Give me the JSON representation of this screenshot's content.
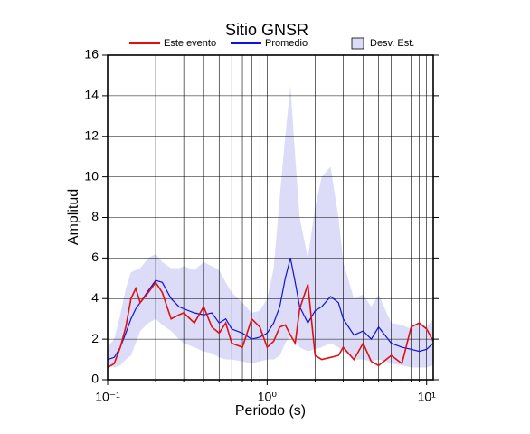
{
  "chart_data": {
    "type": "line",
    "title": "Sitio GNSR",
    "xlabel": "Periodo (s)",
    "ylabel": "Amplitud",
    "xlog": true,
    "grid": true,
    "xlim": [
      0.1,
      11
    ],
    "ylim": [
      0,
      16
    ],
    "xticks": [
      {
        "value": 0.1,
        "label": "10⁻¹"
      },
      {
        "value": 1,
        "label": "10⁰"
      },
      {
        "value": 10,
        "label": "10¹"
      }
    ],
    "xminorticks": [
      0.2,
      0.3,
      0.4,
      0.5,
      0.6,
      0.7,
      0.8,
      0.9,
      2,
      3,
      4,
      5,
      6,
      7,
      8,
      9
    ],
    "yticks": [
      0,
      2,
      4,
      6,
      8,
      10,
      12,
      14,
      16
    ],
    "x": [
      0.1,
      0.11,
      0.12,
      0.13,
      0.14,
      0.15,
      0.16,
      0.18,
      0.2,
      0.22,
      0.25,
      0.28,
      0.3,
      0.35,
      0.4,
      0.45,
      0.5,
      0.55,
      0.6,
      0.7,
      0.8,
      0.9,
      1.0,
      1.1,
      1.2,
      1.3,
      1.4,
      1.5,
      1.6,
      1.8,
      2.0,
      2.2,
      2.5,
      2.8,
      3.0,
      3.5,
      4.0,
      4.5,
      5.0,
      6.0,
      7.0,
      8.0,
      9.0,
      10,
      11
    ],
    "series": [
      {
        "name": "Desv. Est.",
        "color": "#dcdcf8",
        "upper": [
          1.6,
          2.0,
          3.2,
          4.5,
          5.3,
          5.4,
          5.5,
          6.0,
          6.2,
          5.8,
          5.5,
          5.5,
          5.6,
          5.4,
          5.8,
          5.6,
          5.4,
          4.8,
          4.3,
          3.8,
          3.3,
          3.4,
          4.0,
          5.5,
          9.0,
          12.0,
          14.5,
          11.0,
          8.0,
          6.0,
          8.5,
          10.0,
          10.5,
          8.0,
          5.8,
          4.0,
          4.2,
          3.6,
          4.2,
          2.8,
          2.7,
          2.5,
          2.8,
          2.6,
          3.0
        ],
        "lower": [
          0.7,
          0.6,
          0.7,
          1.0,
          1.2,
          1.8,
          2.4,
          2.8,
          3.0,
          2.7,
          2.4,
          2.0,
          1.8,
          1.6,
          1.4,
          1.3,
          1.1,
          1.0,
          1.0,
          0.9,
          0.8,
          0.9,
          1.0,
          1.0,
          1.2,
          1.8,
          2.2,
          2.0,
          1.6,
          1.4,
          1.5,
          1.6,
          1.8,
          1.6,
          1.4,
          1.0,
          1.0,
          0.9,
          1.0,
          0.8,
          0.7,
          0.6,
          0.6,
          0.6,
          0.7
        ]
      },
      {
        "name": "Promedio",
        "color": "#1010e0",
        "values": [
          1.0,
          1.1,
          1.6,
          2.3,
          3.0,
          3.5,
          3.8,
          4.4,
          4.9,
          4.8,
          4.0,
          3.6,
          3.5,
          3.3,
          3.2,
          3.3,
          2.8,
          3.0,
          2.5,
          2.3,
          2.0,
          2.1,
          2.3,
          2.8,
          3.6,
          5.0,
          6.0,
          4.8,
          3.6,
          2.8,
          3.4,
          3.6,
          4.1,
          3.8,
          3.0,
          2.2,
          2.4,
          2.0,
          2.6,
          1.8,
          1.6,
          1.5,
          1.4,
          1.5,
          1.8
        ]
      },
      {
        "name": "Este evento",
        "color": "#e01010",
        "values": [
          0.6,
          0.8,
          1.6,
          2.6,
          4.0,
          4.5,
          3.8,
          4.3,
          4.8,
          4.3,
          3.0,
          3.2,
          3.3,
          2.8,
          3.6,
          2.6,
          2.3,
          2.8,
          1.8,
          1.6,
          3.0,
          2.6,
          1.6,
          1.9,
          2.6,
          2.7,
          2.2,
          1.8,
          3.5,
          4.7,
          1.2,
          1.0,
          1.1,
          1.2,
          1.6,
          1.0,
          1.8,
          0.9,
          0.7,
          1.2,
          0.8,
          2.6,
          2.8,
          2.5,
          1.9
        ]
      }
    ]
  }
}
